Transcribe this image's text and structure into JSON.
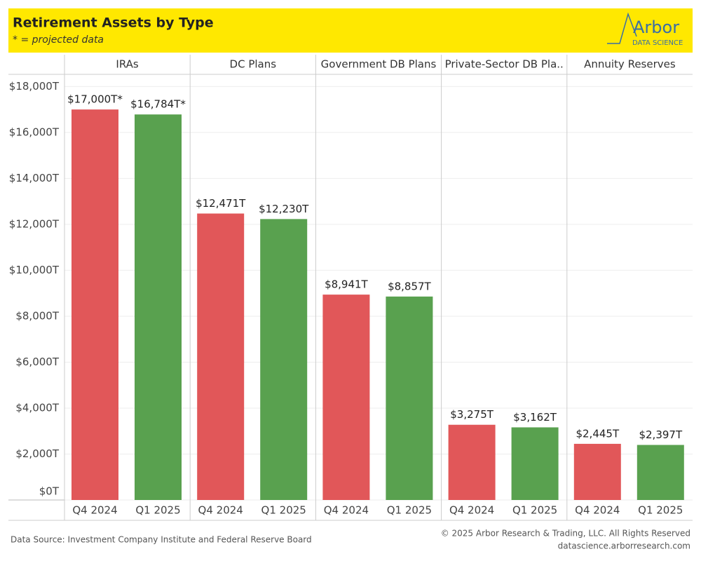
{
  "chart_data": {
    "type": "bar",
    "title": "Retirement Assets by Type",
    "subtitle": "* = projected data",
    "logo": {
      "name": "Arbor",
      "tagline": "DATA SCIENCE"
    },
    "categories": [
      "IRAs",
      "DC Plans",
      "Government DB Plans",
      "Private-Sector DB Pla..",
      "Annuity Reserves"
    ],
    "series": [
      {
        "name": "Q4 2024",
        "color": "#e15759",
        "values": [
          17000,
          12471,
          8941,
          3275,
          2445
        ],
        "value_labels": [
          "$17,000T*",
          "$12,471T",
          "$8,941T",
          "$3,275T",
          "$2,445T"
        ]
      },
      {
        "name": "Q1 2025",
        "color": "#59a14f",
        "values": [
          16784,
          12230,
          8857,
          3162,
          2397
        ],
        "value_labels": [
          "$16,784T*",
          "$12,230T",
          "$8,857T",
          "$3,162T",
          "$2,397T"
        ]
      }
    ],
    "ylim": [
      0,
      18500
    ],
    "yticks": [
      {
        "value": 0,
        "label": "$0T"
      },
      {
        "value": 2000,
        "label": "$2,000T"
      },
      {
        "value": 4000,
        "label": "$4,000T"
      },
      {
        "value": 6000,
        "label": "$6,000T"
      },
      {
        "value": 8000,
        "label": "$8,000T"
      },
      {
        "value": 10000,
        "label": "$10,000T"
      },
      {
        "value": 12000,
        "label": "$12,000T"
      },
      {
        "value": 14000,
        "label": "$14,000T"
      },
      {
        "value": 16000,
        "label": "$16,000T"
      },
      {
        "value": 18000,
        "label": "$18,000T"
      }
    ],
    "grid": true,
    "source": "Data Source: Investment Company Institute and Federal Reserve Board",
    "credit": "© 2025 Arbor Research & Trading, LLC. All Rights Reserved",
    "url": "datascience.arborresearch.com"
  }
}
